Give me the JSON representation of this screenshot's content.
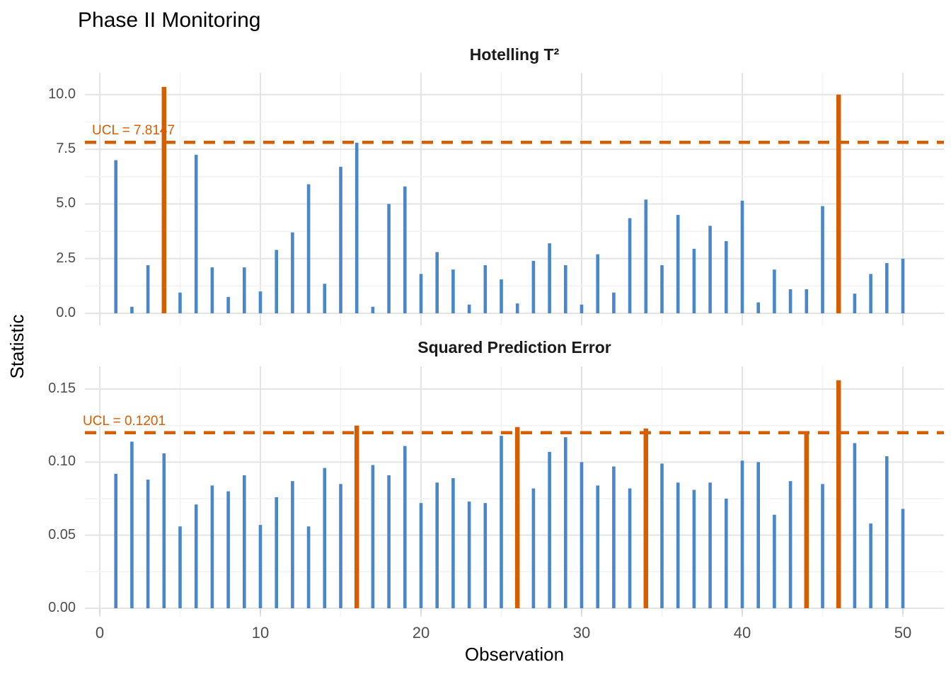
{
  "title": "Phase II Monitoring",
  "y_axis_title": "Statistic",
  "x_axis": {
    "title": "Observation",
    "ticks": [
      0,
      10,
      20,
      30,
      40,
      50
    ],
    "tick_labels": [
      "0",
      "10",
      "20",
      "30",
      "40",
      "50"
    ],
    "minor_ticks": [
      5,
      15,
      25,
      35,
      45
    ]
  },
  "colors": {
    "bar": "#4A87C8",
    "out_of_control": "#D55E00",
    "ucl_line": "#D55E00",
    "grid_major": "#E4E4E4",
    "grid_minor": "#F2F2F2",
    "tick_text": "#4D4D4D"
  },
  "chart_data": [
    {
      "type": "bar",
      "title": "Hotelling T²",
      "xlabel": "Observation",
      "ylabel": "Statistic",
      "ucl": 7.8147,
      "ucl_label": "UCL = 7.8147",
      "ylim": [
        -0.5,
        11.0
      ],
      "yticks": [
        0.0,
        2.5,
        5.0,
        7.5,
        10.0
      ],
      "ytick_labels": [
        "0.0",
        "2.5",
        "5.0",
        "7.5",
        "10.0"
      ],
      "x": [
        1,
        2,
        3,
        4,
        5,
        6,
        7,
        8,
        9,
        10,
        11,
        12,
        13,
        14,
        15,
        16,
        17,
        18,
        19,
        20,
        21,
        22,
        23,
        24,
        25,
        26,
        27,
        28,
        29,
        30,
        31,
        32,
        33,
        34,
        35,
        36,
        37,
        38,
        39,
        40,
        41,
        42,
        43,
        44,
        45,
        46,
        47,
        48,
        49,
        50
      ],
      "values": [
        7.0,
        0.3,
        2.2,
        10.35,
        0.95,
        7.25,
        2.1,
        0.75,
        2.1,
        1.0,
        2.9,
        3.7,
        5.9,
        1.35,
        6.7,
        7.8,
        0.3,
        5.0,
        5.8,
        1.8,
        2.8,
        2.0,
        0.4,
        2.2,
        1.55,
        0.45,
        2.4,
        3.2,
        2.2,
        0.4,
        2.7,
        0.95,
        4.35,
        5.2,
        2.2,
        4.5,
        2.95,
        4.0,
        3.3,
        5.15,
        0.5,
        2.0,
        1.1,
        1.1,
        4.9,
        10.0,
        0.9,
        1.8,
        2.3,
        2.5
      ],
      "out_of_control": [
        4,
        46
      ]
    },
    {
      "type": "bar",
      "title": "Squared Prediction Error",
      "xlabel": "Observation",
      "ylabel": "Statistic",
      "ucl": 0.1201,
      "ucl_label": "UCL = 0.1201",
      "ylim": [
        -0.005,
        0.165
      ],
      "yticks": [
        0.0,
        0.05,
        0.1,
        0.15
      ],
      "ytick_labels": [
        "0.00",
        "0.05",
        "0.10",
        "0.15"
      ],
      "x": [
        1,
        2,
        3,
        4,
        5,
        6,
        7,
        8,
        9,
        10,
        11,
        12,
        13,
        14,
        15,
        16,
        17,
        18,
        19,
        20,
        21,
        22,
        23,
        24,
        25,
        26,
        27,
        28,
        29,
        30,
        31,
        32,
        33,
        34,
        35,
        36,
        37,
        38,
        39,
        40,
        41,
        42,
        43,
        44,
        45,
        46,
        47,
        48,
        49,
        50
      ],
      "values": [
        0.092,
        0.114,
        0.088,
        0.106,
        0.056,
        0.071,
        0.084,
        0.08,
        0.091,
        0.057,
        0.076,
        0.087,
        0.056,
        0.096,
        0.085,
        0.125,
        0.098,
        0.091,
        0.111,
        0.072,
        0.086,
        0.089,
        0.073,
        0.072,
        0.118,
        0.124,
        0.082,
        0.107,
        0.117,
        0.1,
        0.084,
        0.097,
        0.082,
        0.123,
        0.099,
        0.086,
        0.081,
        0.086,
        0.075,
        0.101,
        0.1,
        0.064,
        0.087,
        0.1205,
        0.085,
        0.156,
        0.113,
        0.058,
        0.104,
        0.068
      ],
      "out_of_control": [
        16,
        26,
        34,
        44,
        46
      ]
    }
  ]
}
